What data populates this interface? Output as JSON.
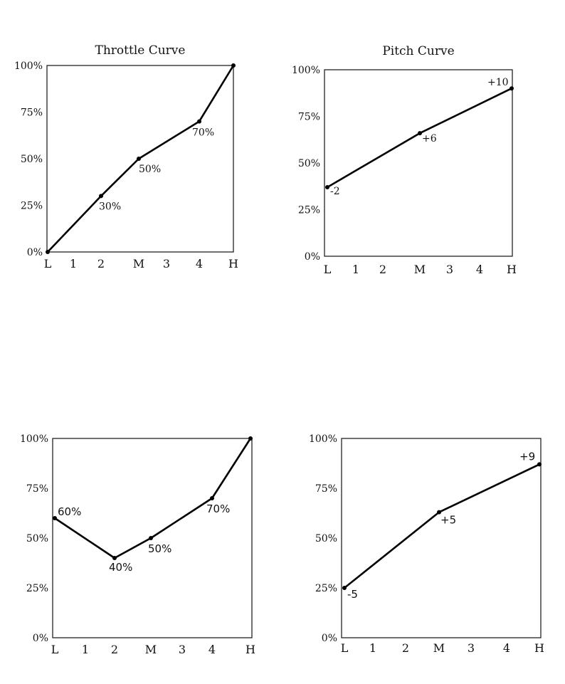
{
  "chart_data": [
    {
      "type": "line",
      "title": "Throttle Curve",
      "categories": [
        "L",
        "1",
        "2",
        "M",
        "3",
        "4",
        "H"
      ],
      "yticks": [
        "0%",
        "25%",
        "50%",
        "75%",
        "100%"
      ],
      "ylim": [
        0,
        100
      ],
      "points": [
        {
          "x": "L",
          "y": 0,
          "label": ""
        },
        {
          "x": "2",
          "y": 30,
          "label": "30%"
        },
        {
          "x": "M",
          "y": 50,
          "label": "50%"
        },
        {
          "x": "4",
          "y": 70,
          "label": "70%"
        },
        {
          "x": "H",
          "y": 100,
          "label": ""
        }
      ]
    },
    {
      "type": "line",
      "title": "Pitch Curve",
      "categories": [
        "L",
        "1",
        "2",
        "M",
        "3",
        "4",
        "H"
      ],
      "yticks": [
        "0%",
        "25%",
        "50%",
        "75%",
        "100%"
      ],
      "ylim": [
        0,
        100
      ],
      "points": [
        {
          "x": "L",
          "y": 37,
          "label": "-2"
        },
        {
          "x": "M",
          "y": 66,
          "label": "+6"
        },
        {
          "x": "H",
          "y": 90,
          "label": "+10"
        }
      ]
    },
    {
      "type": "line",
      "title": "",
      "categories": [
        "L",
        "1",
        "2",
        "M",
        "3",
        "4",
        "H"
      ],
      "yticks": [
        "0%",
        "25%",
        "50%",
        "75%",
        "100%"
      ],
      "ylim": [
        0,
        100
      ],
      "points": [
        {
          "x": "L",
          "y": 60,
          "label": "60%"
        },
        {
          "x": "2",
          "y": 40,
          "label": "40%"
        },
        {
          "x": "M",
          "y": 50,
          "label": "50%"
        },
        {
          "x": "4",
          "y": 70,
          "label": "70%"
        },
        {
          "x": "H",
          "y": 100,
          "label": ""
        }
      ]
    },
    {
      "type": "line",
      "title": "",
      "categories": [
        "L",
        "1",
        "2",
        "M",
        "3",
        "4",
        "H"
      ],
      "yticks": [
        "0%",
        "25%",
        "50%",
        "75%",
        "100%"
      ],
      "ylim": [
        0,
        100
      ],
      "points": [
        {
          "x": "L",
          "y": 25,
          "label": "-5"
        },
        {
          "x": "M",
          "y": 63,
          "label": "+5"
        },
        {
          "x": "H",
          "y": 87,
          "label": "+9"
        }
      ]
    }
  ]
}
